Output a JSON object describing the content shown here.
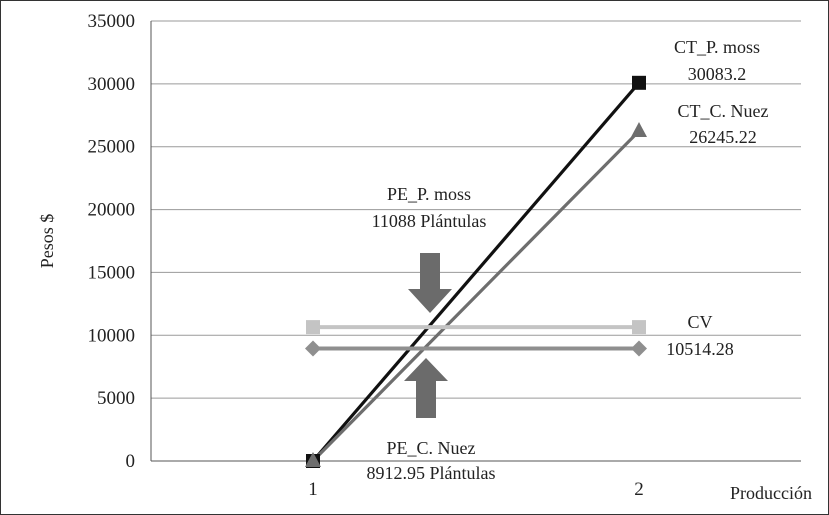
{
  "chart_data": {
    "type": "line",
    "xlabel": "Producción",
    "ylabel": "Pesos $",
    "x": [
      1,
      2
    ],
    "ylim": [
      0,
      35000
    ],
    "yticks": [
      0,
      5000,
      10000,
      15000,
      20000,
      25000,
      30000,
      35000
    ],
    "grid": true,
    "legend": "none",
    "series": [
      {
        "key": "ct_pmoss",
        "values": [
          0,
          30083.2
        ],
        "color": "#111111",
        "marker": "square"
      },
      {
        "key": "ct_cnuez",
        "values": [
          0,
          26245.22
        ],
        "color": "#6e6e6e",
        "marker": "triangle"
      },
      {
        "key": "cv_pmoss",
        "values": [
          10650,
          10650
        ],
        "color": "#c4c4c4",
        "marker": "square"
      },
      {
        "key": "cv_cnuez",
        "values": [
          8950,
          8950
        ],
        "color": "#8f8f8f",
        "marker": "diamond"
      }
    ],
    "annotations": [
      {
        "id": "ct-pmoss",
        "lines": [
          "CT_P. moss",
          "30083.2"
        ]
      },
      {
        "id": "ct-cnuez",
        "lines": [
          "CT_C. Nuez",
          "26245.22"
        ]
      },
      {
        "id": "pe-pmoss",
        "lines": [
          "PE_P. moss",
          "11088 Plántulas"
        ]
      },
      {
        "id": "pe-cnuez",
        "lines": [
          "PE_C. Nuez",
          "8912.95 Plántulas"
        ]
      },
      {
        "id": "cv",
        "lines": [
          "CV",
          "10514.28"
        ]
      }
    ],
    "arrow_color": "#6b6b6b"
  }
}
